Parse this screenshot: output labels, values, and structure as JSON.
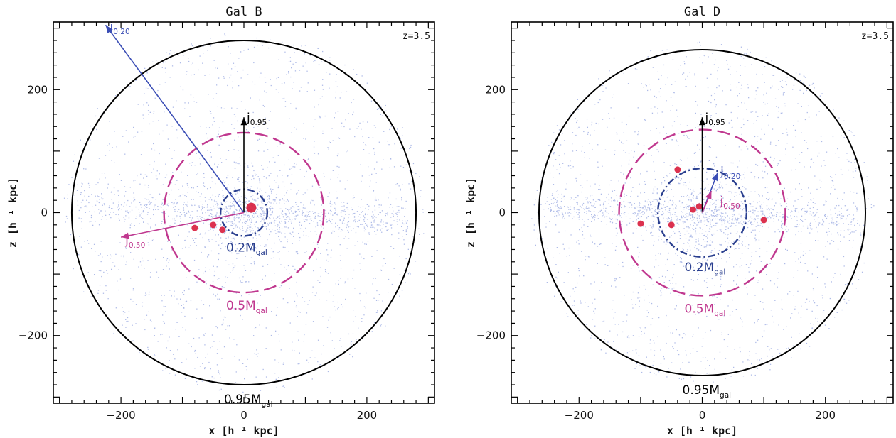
{
  "chart_data": [
    {
      "type": "scatter",
      "title": "Gal B",
      "redshift_label": "z=3.5",
      "xlabel": "x [h⁻¹ kpc]",
      "ylabel": "z [h⁻¹ kpc]",
      "xlim": [
        -310,
        310
      ],
      "ylim": [
        -310,
        310
      ],
      "xticks": [
        -200,
        0,
        200
      ],
      "yticks": [
        -200,
        0,
        200
      ],
      "xtick_labels": [
        "−200",
        "0",
        "200"
      ],
      "ytick_labels": [
        "−200",
        "0",
        "200"
      ],
      "circles": [
        {
          "label_main": "0.95M",
          "label_sub": "gal",
          "r": 280,
          "style": "solid",
          "color": "#000000"
        },
        {
          "label_main": "0.5M",
          "label_sub": "gal",
          "r": 130,
          "style": "dashed",
          "color": "#c0388f"
        },
        {
          "label_main": "0.2M",
          "label_sub": "gal",
          "r": 38,
          "style": "dashdot",
          "color": "#2a3f8f"
        }
      ],
      "vectors": [
        {
          "label_main": "j",
          "label_sub": "0.95",
          "from": [
            0,
            0
          ],
          "to": [
            0,
            155
          ],
          "color": "#000000"
        },
        {
          "label_main": "j",
          "label_sub": "0.20",
          "from": [
            0,
            0
          ],
          "to": [
            -225,
            305
          ],
          "color": "#3a4db5"
        },
        {
          "label_main": "j",
          "label_sub": "0.50",
          "from": [
            0,
            0
          ],
          "to": [
            -200,
            -40
          ],
          "color": "#c0388f"
        }
      ],
      "red_clumps": [
        [
          12,
          8
        ],
        [
          -50,
          -20
        ],
        [
          -80,
          -25
        ],
        [
          -35,
          -28
        ]
      ]
    },
    {
      "type": "scatter",
      "title": "Gal D",
      "redshift_label": "z=3.5",
      "xlabel": "x [h⁻¹ kpc]",
      "ylabel": "z [h⁻¹ kpc]",
      "xlim": [
        -310,
        310
      ],
      "ylim": [
        -310,
        310
      ],
      "xticks": [
        -200,
        0,
        200
      ],
      "yticks": [
        -200,
        0,
        200
      ],
      "xtick_labels": [
        "−200",
        "0",
        "200"
      ],
      "ytick_labels": [
        "−200",
        "0",
        "200"
      ],
      "circles": [
        {
          "label_main": "0.95M",
          "label_sub": "gal",
          "r": 265,
          "style": "solid",
          "color": "#000000"
        },
        {
          "label_main": "0.5M",
          "label_sub": "gal",
          "r": 135,
          "style": "dashed",
          "color": "#c0388f"
        },
        {
          "label_main": "0.2M",
          "label_sub": "gal",
          "r": 72,
          "style": "dashdot",
          "color": "#2a3f8f"
        }
      ],
      "vectors": [
        {
          "label_main": "j",
          "label_sub": "0.95",
          "from": [
            0,
            0
          ],
          "to": [
            0,
            155
          ],
          "color": "#000000"
        },
        {
          "label_main": "j",
          "label_sub": "0.20",
          "from": [
            0,
            0
          ],
          "to": [
            25,
            65
          ],
          "color": "#3a4db5"
        },
        {
          "label_main": "j",
          "label_sub": "0.50",
          "from": [
            0,
            0
          ],
          "to": [
            15,
            35
          ],
          "color": "#c0388f"
        }
      ],
      "red_clumps": [
        [
          -40,
          70
        ],
        [
          -15,
          5
        ],
        [
          100,
          -12
        ],
        [
          -50,
          -20
        ],
        [
          -100,
          -18
        ],
        [
          -5,
          10
        ]
      ]
    }
  ]
}
